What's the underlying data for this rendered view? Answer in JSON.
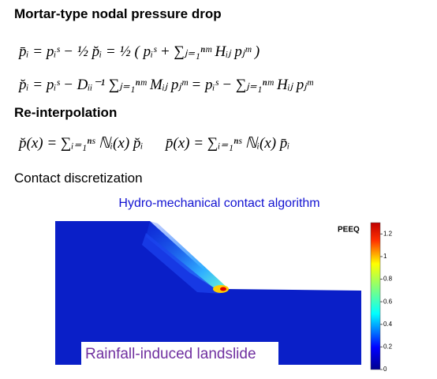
{
  "heading1": "Mortar-type nodal pressure drop",
  "equation1": "p̄ᵢ = pᵢˢ − ½ p̆ᵢ = ½ ( pᵢˢ + ∑ⱼ₌₁ⁿᵐ Hᵢⱼ pⱼᵐ )",
  "equation2": "p̆ᵢ = pᵢˢ − Dᵢᵢ⁻¹ ∑ⱼ₌₁ⁿᵐ Mᵢⱼ pⱼᵐ = pᵢˢ − ∑ⱼ₌₁ⁿᵐ Hᵢⱼ pⱼᵐ",
  "heading2": "Re-interpolation",
  "equation3": "p̆(x) = ∑ᵢ₌₁ⁿˢ ℕᵢ(x) p̆ᵢ      p̄(x) = ∑ᵢ₌₁ⁿˢ ℕᵢ(x) p̄ᵢ",
  "heading3": "Contact discretization",
  "figure": {
    "title": "Hydro-mechanical contact algorithm",
    "caption": "Rainfall-induced landslide",
    "colorbar": {
      "label": "PEEQ",
      "ticks": [
        1.2,
        1,
        0.8,
        0.6,
        0.4,
        0.2,
        0
      ],
      "range": [
        0,
        1.3
      ]
    }
  }
}
